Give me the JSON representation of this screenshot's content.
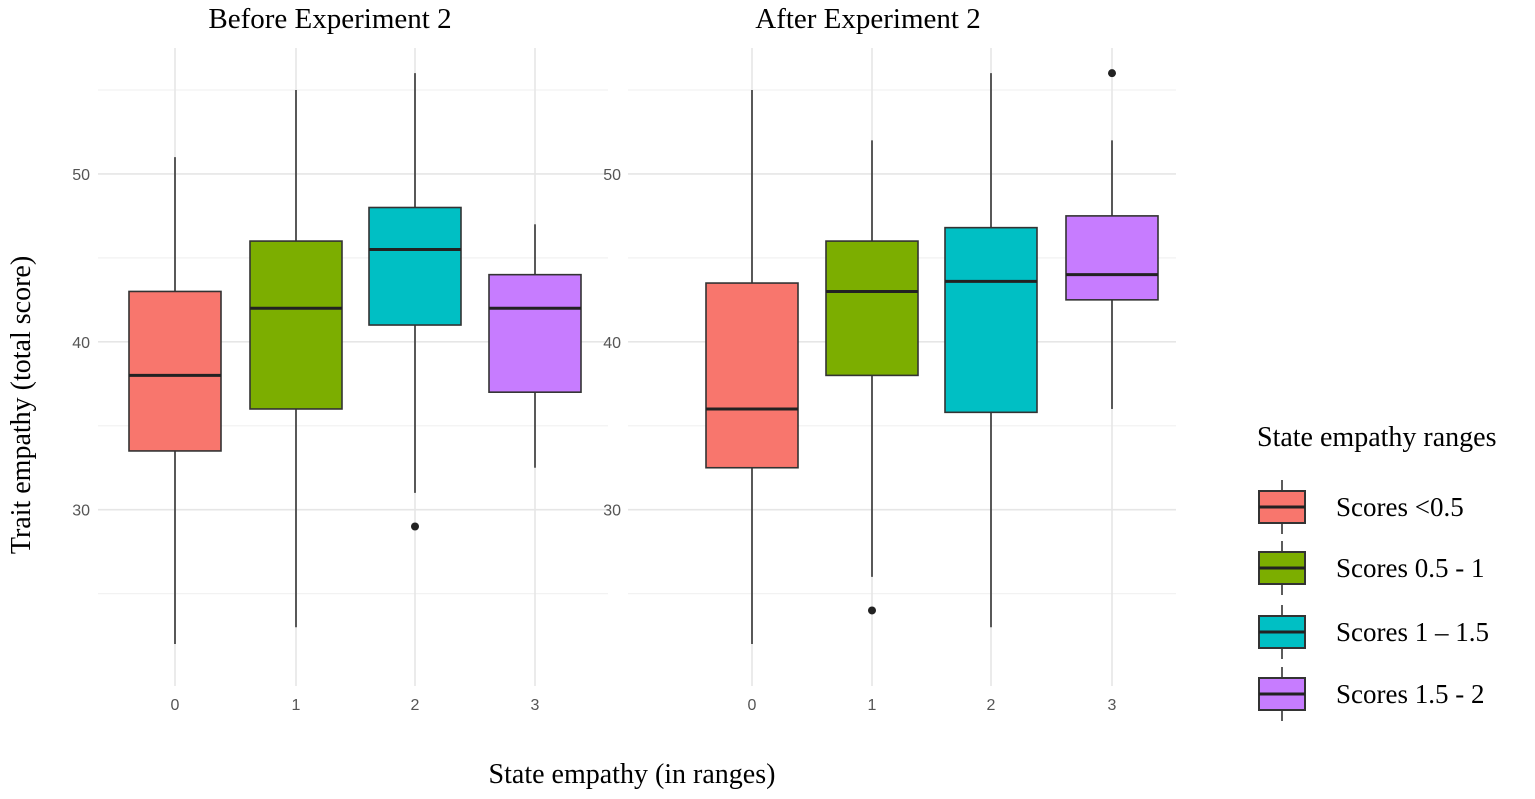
{
  "chart_data": [
    {
      "type": "boxplot",
      "title": "Before Experiment 2",
      "categories": [
        "0",
        "1",
        "2",
        "3"
      ],
      "ylim": [
        19.5,
        57.5
      ],
      "yticks": [
        30,
        40,
        50
      ],
      "boxes": [
        {
          "category": "0",
          "group": "Scores <0.5",
          "min": 22,
          "q1": 33.5,
          "median": 38,
          "q3": 43,
          "max": 51,
          "outliers": []
        },
        {
          "category": "1",
          "group": "Scores 0.5 - 1",
          "min": 23,
          "q1": 36,
          "median": 42,
          "q3": 46,
          "max": 55,
          "outliers": []
        },
        {
          "category": "2",
          "group": "Scores 1 – 1.5",
          "min": 31,
          "q1": 41,
          "median": 45.5,
          "q3": 48,
          "max": 56,
          "outliers": [
            29
          ]
        },
        {
          "category": "3",
          "group": "Scores 1.5 - 2",
          "min": 32.5,
          "q1": 37,
          "median": 42,
          "q3": 44,
          "max": 47,
          "outliers": []
        }
      ]
    },
    {
      "type": "boxplot",
      "title": "After Experiment 2",
      "categories": [
        "0",
        "1",
        "2",
        "3"
      ],
      "ylim": [
        19.5,
        57.5
      ],
      "yticks": [
        30,
        40,
        50
      ],
      "boxes": [
        {
          "category": "0",
          "group": "Scores <0.5",
          "min": 22,
          "q1": 32.5,
          "median": 36,
          "q3": 43.5,
          "max": 55,
          "outliers": []
        },
        {
          "category": "1",
          "group": "Scores 0.5 - 1",
          "min": 26,
          "q1": 38,
          "median": 43,
          "q3": 46,
          "max": 52,
          "outliers": [
            24
          ]
        },
        {
          "category": "2",
          "group": "Scores 1 – 1.5",
          "min": 23,
          "q1": 35.8,
          "median": 43.6,
          "q3": 46.8,
          "max": 56,
          "outliers": []
        },
        {
          "category": "3",
          "group": "Scores 1.5 - 2",
          "min": 36,
          "q1": 42.5,
          "median": 44,
          "q3": 47.5,
          "max": 52,
          "outliers": [
            56
          ]
        }
      ]
    }
  ],
  "axes": {
    "ylabel": "Trait empathy (total score)",
    "xlabel": "State empathy  (in ranges)"
  },
  "legend": {
    "title": "State empathy  ranges",
    "position": "right",
    "items": [
      {
        "label": "Scores <0.5",
        "color": "#F8766D"
      },
      {
        "label": "Scores 0.5 - 1",
        "color": "#7CAE00"
      },
      {
        "label": "Scores 1 – 1.5",
        "color": "#00BFC4"
      },
      {
        "label": "Scores 1.5 - 2",
        "color": "#C77CFF"
      }
    ]
  }
}
